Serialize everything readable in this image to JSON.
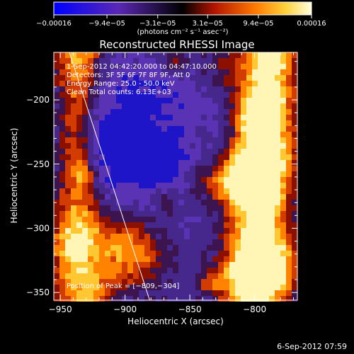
{
  "chart_data": {
    "type": "heatmap",
    "title": "Reconstructed RHESSI Image",
    "xlabel": "Heliocentric X (arcsec)",
    "ylabel": "Heliocentric Y (arcsec)",
    "xlim": [
      -955,
      -767
    ],
    "ylim": [
      -356,
      -163
    ],
    "xticks": [
      -950,
      -900,
      -850,
      -800
    ],
    "yticks": [
      -200,
      -250,
      -300,
      -350
    ],
    "xtick_labels": [
      "−950",
      "−900",
      "−850",
      "−800"
    ],
    "ytick_labels": [
      "−200",
      "−250",
      "−300",
      "−350"
    ],
    "colorbar": {
      "range": [
        -0.00016,
        0.00016
      ],
      "ticks": [
        -0.00016,
        -9.4e-05,
        -3.1e-05,
        3.1e-05,
        9.4e-05,
        0.00016
      ],
      "tick_labels": [
        "−0.00016",
        "−9.4e−05",
        "−3.1e−05",
        "3.1e−05",
        "9.4e−05",
        "0.00016"
      ],
      "unit_label": "(photons cm⁻² s⁻¹ asec⁻²)"
    },
    "info_lines": [
      " 1-Sep-2012 04:42:20.000 to 04:47:10.000",
      "Detectors: 3F 5F 6F 7F 8F 9F, Att 0",
      "Energy Range: 25.0 - 50.0 keV",
      "Clean    Total counts: 6.13E+03"
    ],
    "peak_label": "Position of Peak = [−809,−304]",
    "peak": [
      -809,
      -304
    ],
    "limb_line": [
      [
        -943,
        -163
      ],
      [
        -881,
        -356
      ]
    ],
    "grid": false
  },
  "footer": {
    "timestamp": "6-Sep-2012 07:59"
  }
}
